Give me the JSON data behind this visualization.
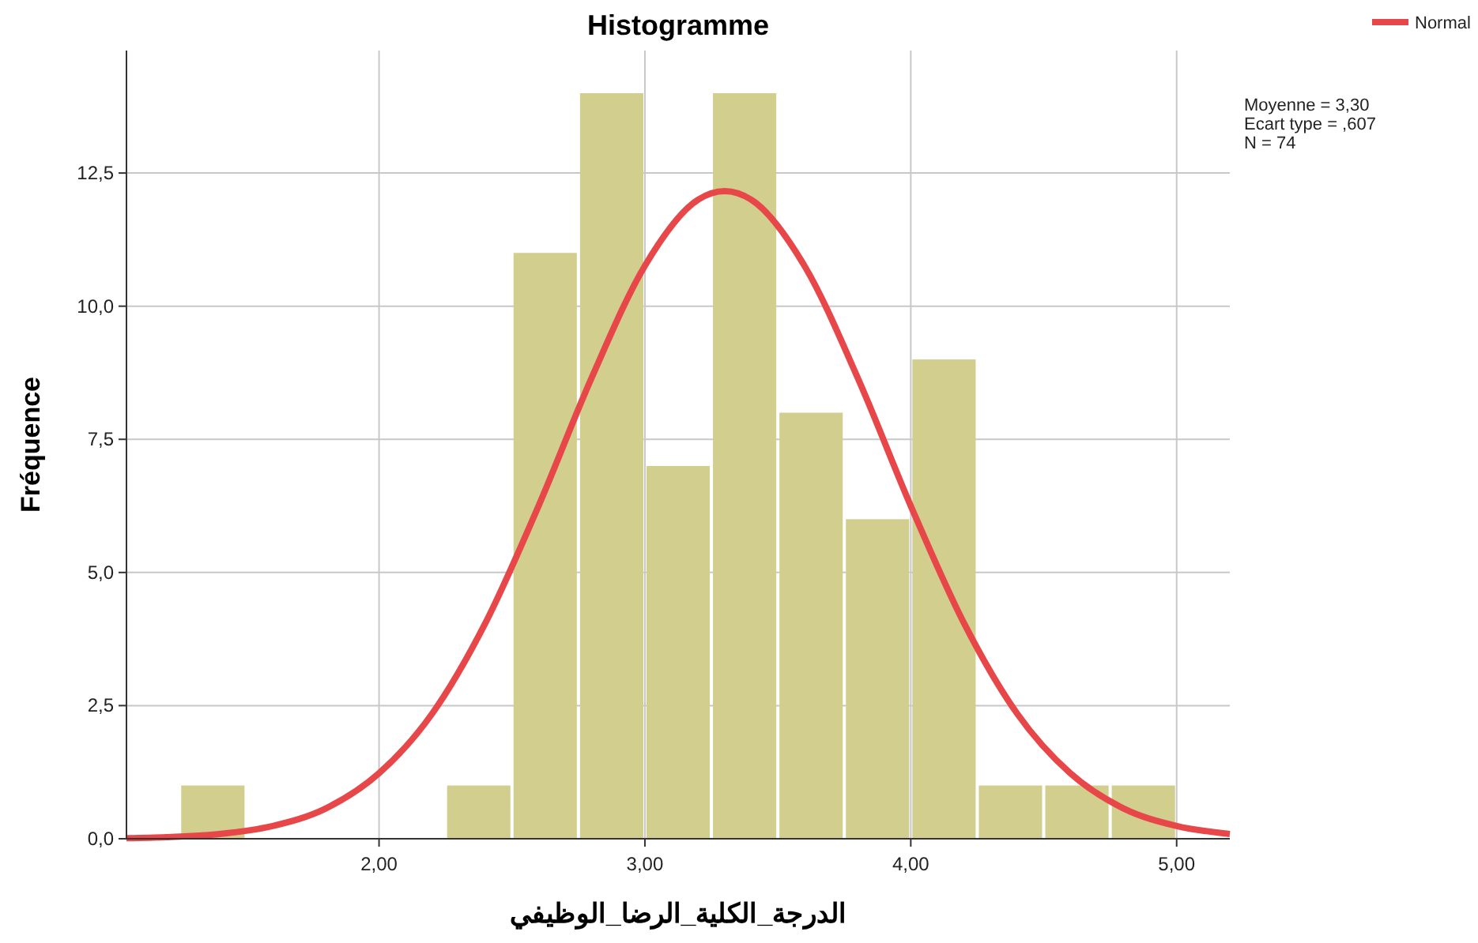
{
  "chart_data": {
    "type": "histogram",
    "title": "Histogramme",
    "xlabel": "الدرجة_الكلية_الرضا_الوظيفي",
    "ylabel": "Fréquence",
    "bins": [
      1.25,
      1.5,
      1.75,
      2.0,
      2.25,
      2.5,
      2.75,
      3.0,
      3.25,
      3.5,
      3.75,
      4.0,
      4.25,
      4.5,
      4.75,
      5.0
    ],
    "values": [
      1,
      0,
      0,
      0,
      1,
      11,
      14,
      7,
      14,
      8,
      6,
      9,
      1,
      1,
      1
    ],
    "color": "#d2ce8e",
    "series": [
      {
        "type": "line",
        "name": "Normal",
        "color": "#e8474a",
        "x": [
          1.05,
          1.2,
          1.4,
          1.6,
          1.8,
          2.0,
          2.2,
          2.4,
          2.6,
          2.8,
          3.0,
          3.2,
          3.3,
          3.4,
          3.6,
          3.8,
          4.0,
          4.2,
          4.4,
          4.6,
          4.8,
          5.0,
          5.2
        ],
        "values": [
          0.01,
          0.03,
          0.09,
          0.24,
          0.57,
          1.23,
          2.35,
          4.05,
          6.25,
          8.66,
          10.76,
          12.0,
          12.16,
          12.0,
          10.76,
          8.66,
          6.25,
          4.05,
          2.35,
          1.23,
          0.57,
          0.24,
          0.09
        ]
      }
    ],
    "xlim": [
      1.05,
      5.2
    ],
    "ylim": [
      0,
      14.8
    ],
    "xticks": [
      {
        "value": 2,
        "label": "2,00"
      },
      {
        "value": 3,
        "label": "3,00"
      },
      {
        "value": 4,
        "label": "4,00"
      },
      {
        "value": 5,
        "label": "5,00"
      }
    ],
    "yticks": [
      {
        "value": 0,
        "label": "0,0"
      },
      {
        "value": 2.5,
        "label": "2,5"
      },
      {
        "value": 5,
        "label": "5,0"
      },
      {
        "value": 7.5,
        "label": "7,5"
      },
      {
        "value": 10,
        "label": "10,0"
      },
      {
        "value": 12.5,
        "label": "12,5"
      }
    ],
    "grid": true,
    "legend": "top right",
    "annotations": [
      "Moyenne = 3,30",
      "Ecart type = ,607",
      "N = 74"
    ]
  }
}
